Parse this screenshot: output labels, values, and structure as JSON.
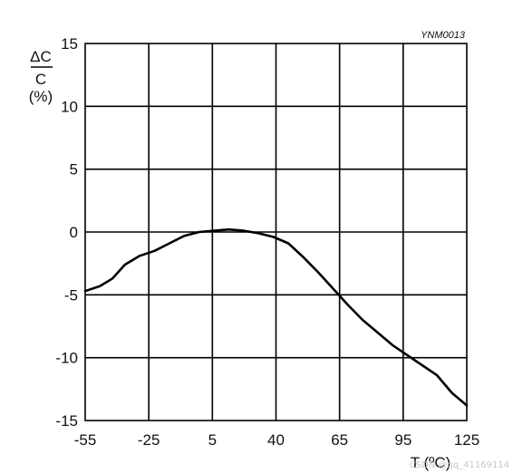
{
  "chart_data": {
    "type": "line",
    "code_label": "YNM0013",
    "ylabel_top": "ΔC",
    "ylabel_bottom": "C",
    "ylabel_unit": "(%)",
    "xlabel": "T  (ºC)",
    "x_ticks": [
      -55,
      -25,
      5,
      40,
      65,
      95,
      125
    ],
    "y_ticks": [
      15,
      10,
      5,
      0,
      -5,
      -10,
      -15
    ],
    "x_tick_labels": [
      "-55",
      "-25",
      "5",
      "40",
      "65",
      "95",
      "125"
    ],
    "y_tick_labels": [
      "15",
      "10",
      "5",
      "0",
      "-5",
      "-10",
      "-15"
    ],
    "ylim": [
      -15,
      15
    ],
    "grid": true,
    "series": [
      {
        "points": [
          [
            0,
            -4.7
          ],
          [
            0.3,
            -4.3
          ],
          [
            0.55,
            -3.7
          ],
          [
            0.8,
            -2.6
          ],
          [
            1.1,
            -1.9
          ],
          [
            1.4,
            -1.5
          ],
          [
            1.7,
            -0.9
          ],
          [
            2.0,
            -0.3
          ],
          [
            2.3,
            0.0
          ],
          [
            2.6,
            0.1
          ],
          [
            2.9,
            0.2
          ],
          [
            3.2,
            0.1
          ],
          [
            3.5,
            -0.1
          ],
          [
            3.8,
            -0.4
          ],
          [
            4.1,
            -0.9
          ],
          [
            4.4,
            -2.0
          ],
          [
            4.7,
            -3.2
          ],
          [
            5.0,
            -4.5
          ],
          [
            5.3,
            -5.8
          ],
          [
            5.6,
            -7.0
          ],
          [
            5.9,
            -8.0
          ],
          [
            6.2,
            -9.0
          ],
          [
            6.5,
            -9.8
          ],
          [
            6.8,
            -10.6
          ],
          [
            7.1,
            -11.4
          ],
          [
            7.4,
            -12.8
          ],
          [
            7.7,
            -13.8
          ]
        ]
      }
    ]
  },
  "watermark": "CSDN @qq_41169114"
}
